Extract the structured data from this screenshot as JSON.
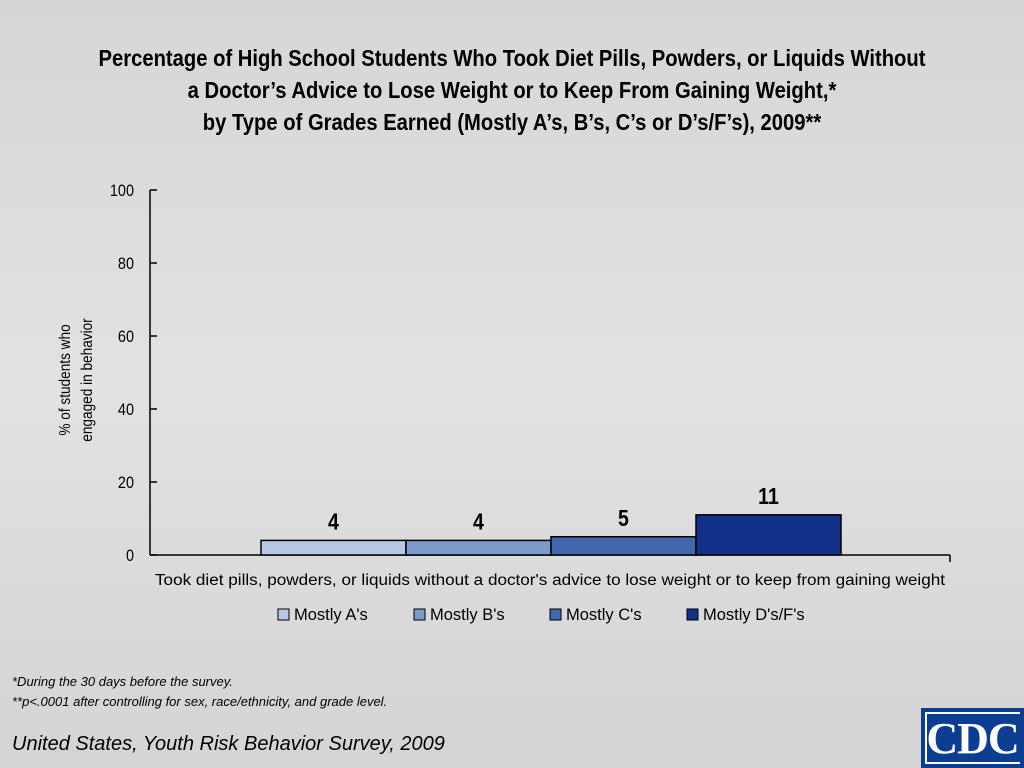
{
  "title_lines": [
    "Percentage of High School Students Who Took Diet Pills, Powders, or Liquids Without",
    "a Doctor’s Advice to Lose Weight or to Keep From Gaining Weight,*",
    "by Type of Grades Earned (Mostly A’s, B’s, C’s or D’s/F’s), 2009**"
  ],
  "chart_data": {
    "type": "bar",
    "categories": [
      "Took diet pills, powders, or liquids without a doctor's advice to lose weight or to keep from gaining weight"
    ],
    "series": [
      {
        "name": "Mostly A's",
        "values": [
          4
        ],
        "color": "#b8c8e4"
      },
      {
        "name": "Mostly B's",
        "values": [
          4
        ],
        "color": "#7b9bcb"
      },
      {
        "name": "Mostly C's",
        "values": [
          5
        ],
        "color": "#4168ae"
      },
      {
        "name": "Mostly D's/F's",
        "values": [
          11
        ],
        "color": "#12328a"
      }
    ],
    "data_labels": [
      "4",
      "4",
      "5",
      "11"
    ],
    "ylabel_lines": [
      "% of students who",
      "engaged in behavior"
    ],
    "xlabel": "",
    "ylim": [
      0,
      100
    ],
    "yticks": [
      0,
      20,
      40,
      60,
      80,
      100
    ],
    "legend_position": "bottom",
    "grid": false
  },
  "footnotes": [
    "*During the 30 days before the survey.",
    "**p<.0001 after controlling for sex, race/ethnicity, and grade level."
  ],
  "source": "United States, Youth Risk Behavior Survey, 2009",
  "logo": {
    "text": "CDC",
    "color": "#0b3d91"
  }
}
